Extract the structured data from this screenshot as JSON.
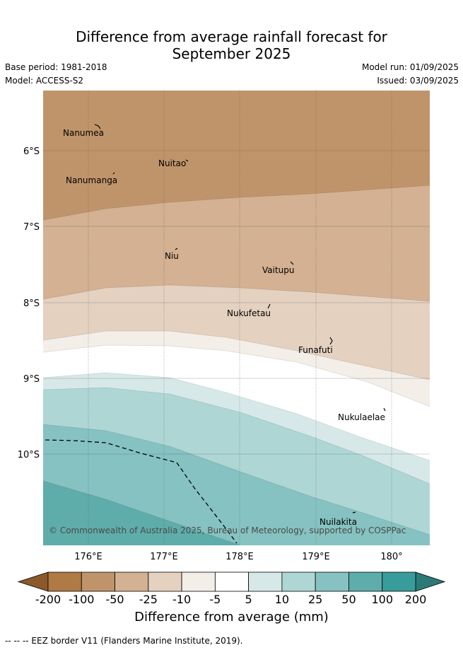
{
  "title_line1": "Difference from average rainfall forecast for",
  "title_line2": "September 2025",
  "base_period": "Base period: 1981-2018",
  "model": "Model: ACCESS-S2",
  "model_run": "Model run: 01/09/2025",
  "issued": "Issued: 03/09/2025",
  "lat_labels": [
    "6°S",
    "7°S",
    "8°S",
    "9°S",
    "10°S"
  ],
  "lon_labels": [
    "176°E",
    "177°E",
    "178°E",
    "179°E",
    "180°"
  ],
  "islands": [
    "Nanumea",
    "Nuitao",
    "Nanumanga",
    "Niu",
    "Vaitupu",
    "Nukufetau",
    "Funafuti",
    "Nukulaelae",
    "Nuilakita"
  ],
  "copyright": "© Commonwealth of Australia 2025, Bureau of Meteorology, supported by COSPPac",
  "colorbar": {
    "ticks": [
      "-200",
      "-100",
      "-50",
      "-25",
      "-10",
      "-5",
      "5",
      "10",
      "25",
      "50",
      "100",
      "200"
    ],
    "colors": [
      "#b07a45",
      "#c0946a",
      "#d3b192",
      "#e4d1c0",
      "#f3eee8",
      "#ffffff",
      "#d6e9e8",
      "#aed6d5",
      "#85c2c1",
      "#5eadab",
      "#389d9a"
    ],
    "low_extend_color": "#8a5a2b",
    "high_extend_color": "#2b7a78",
    "label": "Difference from average (mm)"
  },
  "eez_legend": "-- -- -- EEZ border V11 (Flanders Marine Institute, 2019)."
}
